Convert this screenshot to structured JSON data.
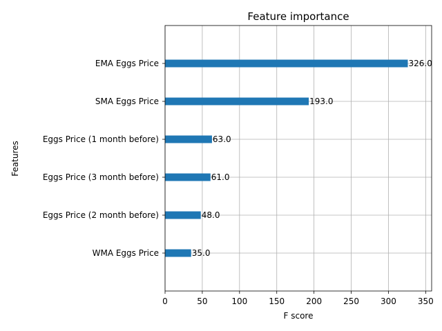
{
  "chart_data": {
    "type": "bar",
    "orientation": "horizontal",
    "title": "Feature importance",
    "xlabel": "F score",
    "ylabel": "Features",
    "categories": [
      "WMA Eggs Price",
      "Eggs Price (2 month before)",
      "Eggs Price (3 month before)",
      "Eggs Price (1 month before)",
      "SMA Eggs Price",
      "EMA Eggs Price"
    ],
    "values": [
      35,
      48,
      61,
      63,
      193,
      326
    ],
    "value_labels": [
      "35.0",
      "48.0",
      "61.0",
      "63.0",
      "193.0",
      "326.0"
    ],
    "xlim": [
      0,
      358
    ],
    "xticks": [
      0,
      50,
      100,
      150,
      200,
      250,
      300,
      350
    ],
    "grid": true,
    "bar_color": "#1f77b4"
  }
}
